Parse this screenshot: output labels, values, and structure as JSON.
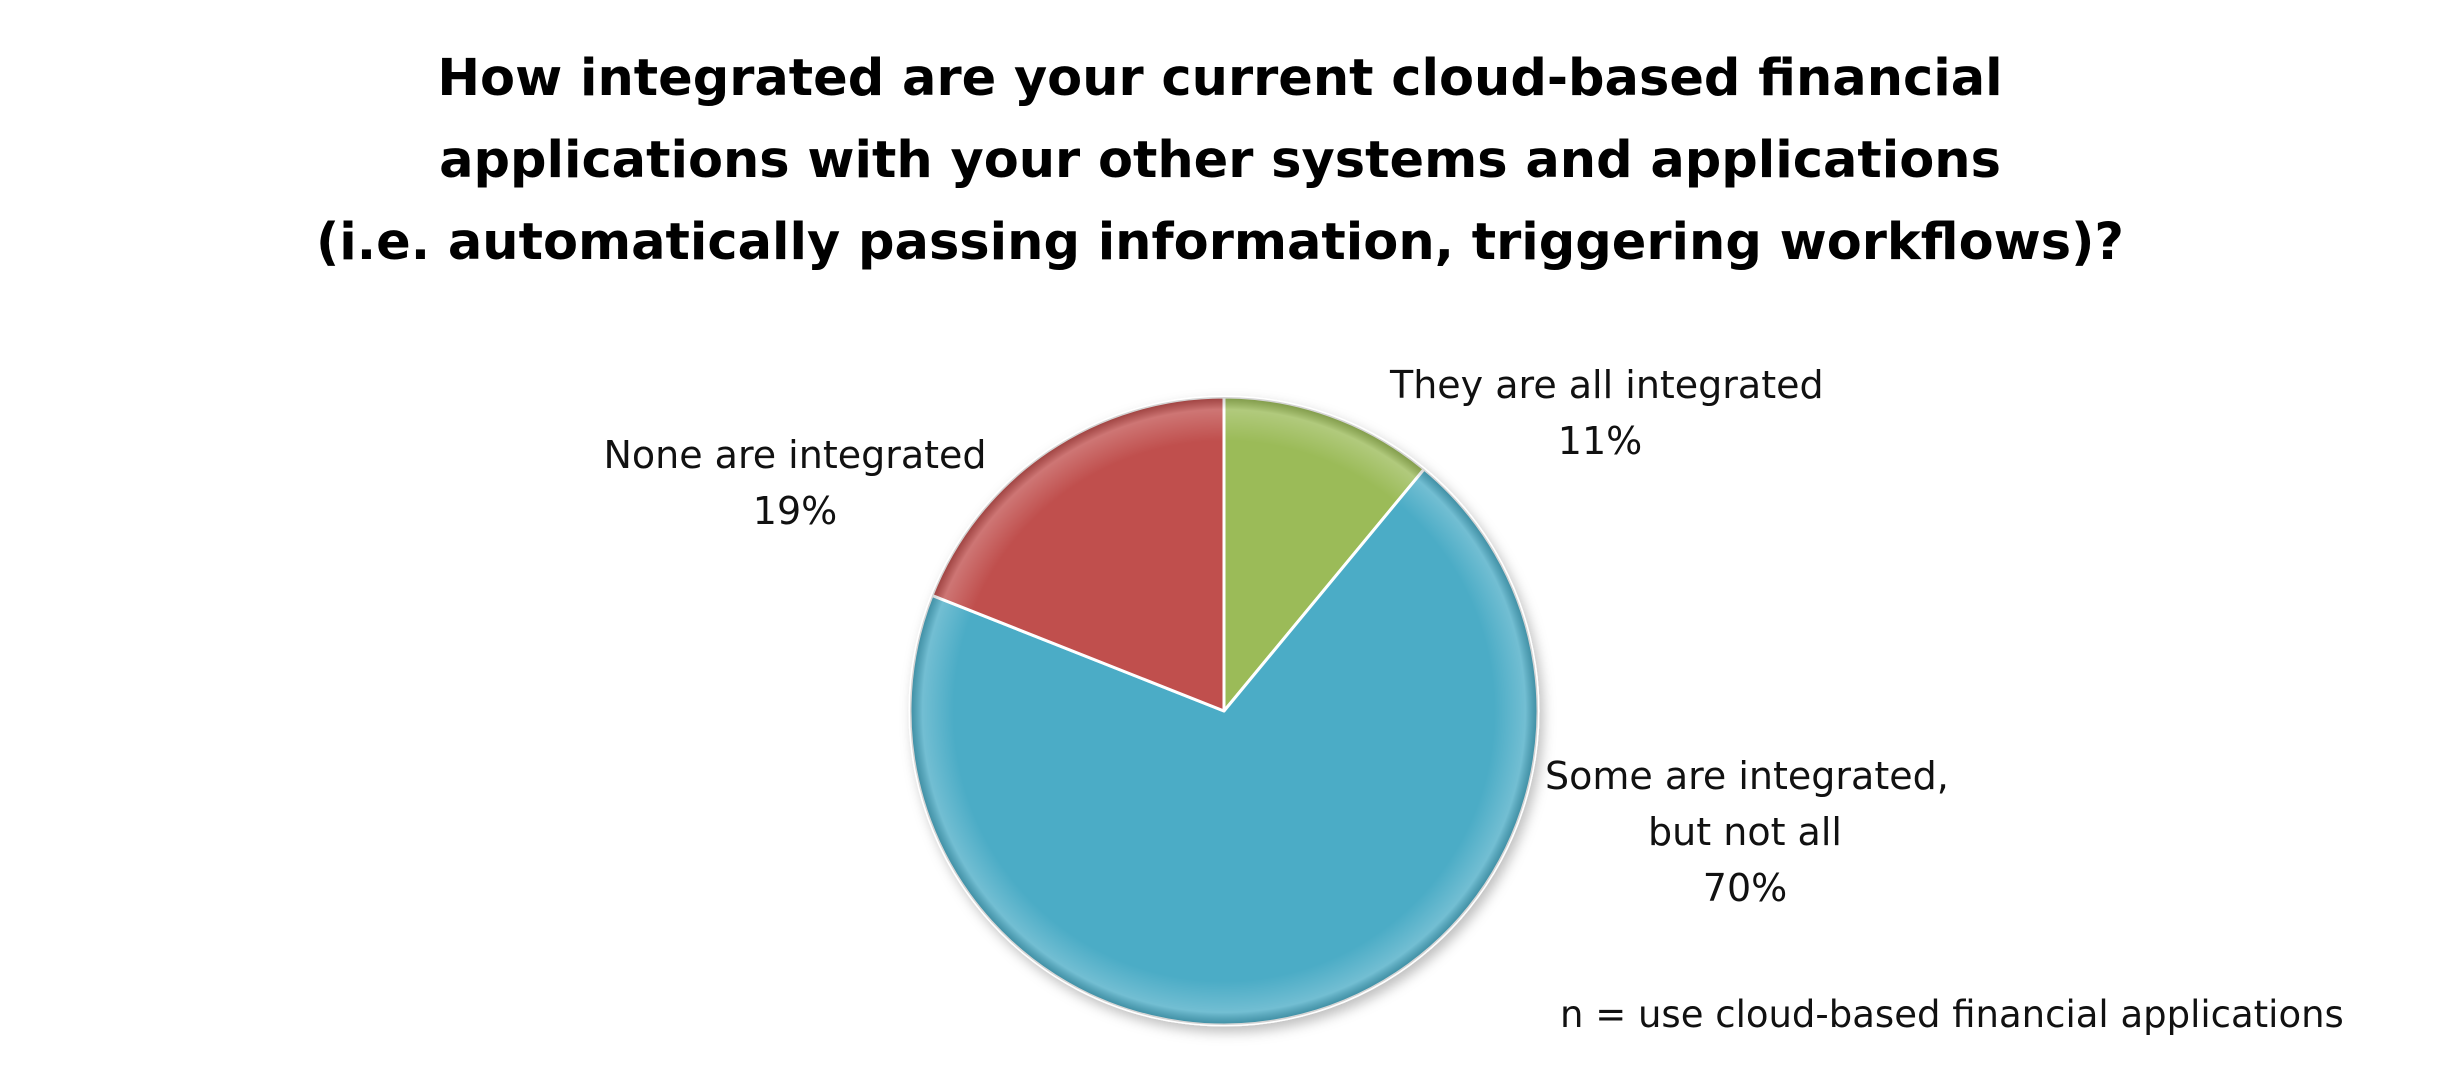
{
  "chart_data": {
    "type": "pie",
    "title_lines": [
      "How integrated are your current cloud-based financial",
      "applications with your other systems and applications",
      "(i.e.  automatically passing information, triggering workflows)?"
    ],
    "start": "12 o'clock",
    "direction": "clockwise",
    "slices": [
      {
        "label_lines": [
          "They are all integrated"
        ],
        "value": 11,
        "value_label": "11%",
        "color": "#9BBB59"
      },
      {
        "label_lines": [
          "Some are integrated,",
          "but not all"
        ],
        "value": 70,
        "value_label": "70%",
        "color": "#4BACC6"
      },
      {
        "label_lines": [
          "None are integrated"
        ],
        "value": 19,
        "value_label": "19%",
        "color": "#C0504D"
      }
    ],
    "legend": "none",
    "footnote": "n = use cloud-based financial applications"
  }
}
